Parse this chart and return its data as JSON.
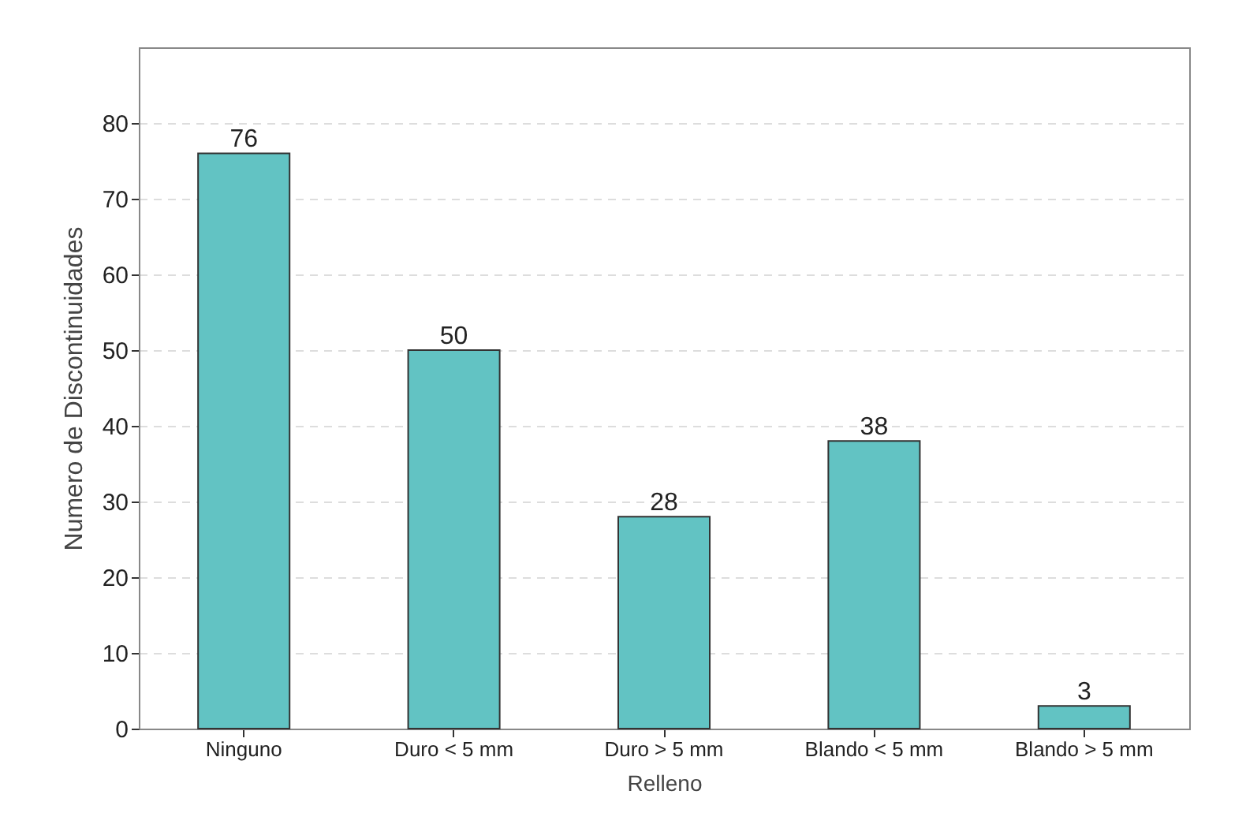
{
  "chart_data": {
    "type": "bar",
    "xlabel": "Relleno",
    "ylabel": "Numero de Discontinuidades",
    "categories": [
      "Ninguno",
      "Duro < 5 mm",
      "Duro > 5 mm",
      "Blando < 5 mm",
      "Blando > 5 mm"
    ],
    "values": [
      76,
      50,
      28,
      38,
      3
    ],
    "color": "#62c3c3",
    "ylim": [
      0,
      90
    ],
    "yticks": [
      0,
      10,
      20,
      30,
      40,
      50,
      60,
      70,
      80
    ],
    "grid": "y",
    "data_labels": true
  }
}
